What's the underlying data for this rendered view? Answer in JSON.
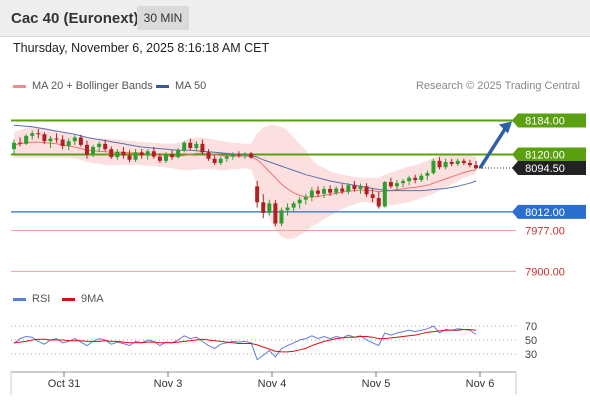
{
  "header": {
    "title": "Cac 40 (Euronext)",
    "timeframe": "30 MIN"
  },
  "datetime": "Thursday, November 6, 2025 8:16:18 AM CET",
  "research": "Research © 2025 Trading Central",
  "legend_main": [
    {
      "label": "MA 20 + Bollinger Bands",
      "color": "#f28c8c"
    },
    {
      "label": "MA 50",
      "color": "#3a5a9c"
    }
  ],
  "legend_rsi": [
    {
      "label": "RSI",
      "color": "#5b7fd6"
    },
    {
      "label": "9MA",
      "color": "#e01010"
    }
  ],
  "colors": {
    "up": "#2e9e2e",
    "down": "#b02020",
    "resistance": "#5aa010",
    "support": "#2a6fd0",
    "target": "#c83030",
    "arrow": "#2f5fa8"
  },
  "chart_data": {
    "type": "candlestick",
    "instrument": "Cac 40 (Euronext)",
    "interval": "30 MIN",
    "x_labels": [
      "Oct 31",
      "Nov 3",
      "Nov 4",
      "Nov 5",
      "Nov 6"
    ],
    "price_range": [
      7880,
      8230
    ],
    "last_price": 8094.5,
    "last_price_label": "8094.50",
    "levels": [
      {
        "value": 8184.0,
        "label": "8184.00",
        "kind": "resistance"
      },
      {
        "value": 8120.0,
        "label": "8120.00",
        "kind": "resistance"
      },
      {
        "value": 8012.0,
        "label": "8012.00",
        "kind": "support"
      },
      {
        "value": 7977.0,
        "label": "7977.00",
        "kind": "target"
      },
      {
        "value": 7900.0,
        "label": "7900.00",
        "kind": "target"
      }
    ],
    "forecast_arrow": {
      "from": 8094.5,
      "to": 8184.0
    },
    "ohlc": [
      [
        8130,
        8148,
        8120,
        8142
      ],
      [
        8142,
        8152,
        8135,
        8140
      ],
      [
        8140,
        8158,
        8138,
        8155
      ],
      [
        8155,
        8165,
        8148,
        8160
      ],
      [
        8160,
        8168,
        8150,
        8158
      ],
      [
        8158,
        8162,
        8140,
        8145
      ],
      [
        8145,
        8155,
        8132,
        8150
      ],
      [
        8150,
        8160,
        8142,
        8148
      ],
      [
        8148,
        8156,
        8130,
        8136
      ],
      [
        8136,
        8150,
        8128,
        8145
      ],
      [
        8145,
        8158,
        8138,
        8152
      ],
      [
        8152,
        8157,
        8135,
        8138
      ],
      [
        8138,
        8146,
        8112,
        8120
      ],
      [
        8120,
        8138,
        8115,
        8134
      ],
      [
        8134,
        8144,
        8124,
        8140
      ],
      [
        8140,
        8148,
        8126,
        8130
      ],
      [
        8130,
        8135,
        8112,
        8115
      ],
      [
        8115,
        8130,
        8110,
        8125
      ],
      [
        8125,
        8134,
        8112,
        8118
      ],
      [
        8118,
        8128,
        8105,
        8110
      ],
      [
        8110,
        8130,
        8106,
        8124
      ],
      [
        8124,
        8130,
        8112,
        8118
      ],
      [
        8118,
        8130,
        8110,
        8126
      ],
      [
        8126,
        8134,
        8112,
        8116
      ],
      [
        8116,
        8122,
        8104,
        8108
      ],
      [
        8108,
        8124,
        8104,
        8120
      ],
      [
        8120,
        8128,
        8110,
        8115
      ],
      [
        8115,
        8132,
        8112,
        8128
      ],
      [
        8128,
        8145,
        8124,
        8142
      ],
      [
        8142,
        8150,
        8128,
        8132
      ],
      [
        8132,
        8145,
        8126,
        8140
      ],
      [
        8140,
        8148,
        8120,
        8124
      ],
      [
        8124,
        8130,
        8108,
        8112
      ],
      [
        8112,
        8118,
        8100,
        8104
      ],
      [
        8104,
        8116,
        8100,
        8112
      ],
      [
        8112,
        8122,
        8106,
        8116
      ],
      [
        8116,
        8124,
        8110,
        8120
      ],
      [
        8120,
        8126,
        8114,
        8118
      ],
      [
        8118,
        8124,
        8112,
        8122
      ],
      [
        8122,
        8125,
        8112,
        8114
      ],
      [
        8060,
        8070,
        8020,
        8030
      ],
      [
        8030,
        8045,
        8000,
        8010
      ],
      [
        8010,
        8035,
        8005,
        8028
      ],
      [
        8028,
        8034,
        7985,
        7990
      ],
      [
        7990,
        8020,
        7985,
        8015
      ],
      [
        8015,
        8028,
        8005,
        8020
      ],
      [
        8020,
        8032,
        8012,
        8028
      ],
      [
        8028,
        8040,
        8018,
        8035
      ],
      [
        8035,
        8046,
        8026,
        8040
      ],
      [
        8040,
        8058,
        8032,
        8052
      ],
      [
        8052,
        8060,
        8040,
        8046
      ],
      [
        8046,
        8060,
        8038,
        8055
      ],
      [
        8055,
        8062,
        8042,
        8048
      ],
      [
        8048,
        8060,
        8044,
        8056
      ],
      [
        8056,
        8064,
        8046,
        8050
      ],
      [
        8050,
        8066,
        8045,
        8062
      ],
      [
        8062,
        8070,
        8050,
        8055
      ],
      [
        8055,
        8065,
        8046,
        8060
      ],
      [
        8060,
        8066,
        8040,
        8045
      ],
      [
        8045,
        8056,
        8030,
        8038
      ],
      [
        8038,
        8050,
        8018,
        8022
      ],
      [
        8022,
        8070,
        8020,
        8068
      ],
      [
        8068,
        8076,
        8056,
        8060
      ],
      [
        8060,
        8072,
        8052,
        8066
      ],
      [
        8066,
        8074,
        8058,
        8070
      ],
      [
        8070,
        8080,
        8062,
        8076
      ],
      [
        8076,
        8082,
        8066,
        8072
      ],
      [
        8072,
        8084,
        8068,
        8080
      ],
      [
        8080,
        8090,
        8072,
        8085
      ],
      [
        8085,
        8112,
        8082,
        8108
      ],
      [
        8108,
        8115,
        8092,
        8096
      ],
      [
        8096,
        8112,
        8092,
        8106
      ],
      [
        8106,
        8112,
        8098,
        8102
      ],
      [
        8102,
        8112,
        8098,
        8108
      ],
      [
        8108,
        8112,
        8100,
        8104
      ],
      [
        8104,
        8110,
        8096,
        8100
      ],
      [
        8100,
        8108,
        8092,
        8094
      ]
    ],
    "ma20": [
      8138,
      8140,
      8142,
      8143,
      8143,
      8142,
      8141,
      8140,
      8138,
      8136,
      8134,
      8131,
      8128,
      8127,
      8126,
      8125,
      8124,
      8124,
      8124,
      8123,
      8123,
      8122,
      8121,
      8120,
      8119,
      8118,
      8117,
      8117,
      8118,
      8120,
      8122,
      8122,
      8121,
      8120,
      8118,
      8117,
      8117,
      8117,
      8117,
      8116,
      8110,
      8100,
      8088,
      8076,
      8064,
      8055,
      8048,
      8043,
      8040,
      8040,
      8041,
      8043,
      8045,
      8047,
      8049,
      8051,
      8052,
      8053,
      8053,
      8052,
      8050,
      8051,
      8052,
      8054,
      8055,
      8057,
      8058,
      8060,
      8062,
      8066,
      8070,
      8074,
      8078,
      8082,
      8086,
      8089,
      8091
    ],
    "bb_upper": [
      8162,
      8166,
      8170,
      8172,
      8172,
      8170,
      8168,
      8165,
      8162,
      8158,
      8155,
      8152,
      8150,
      8150,
      8150,
      8150,
      8149,
      8148,
      8147,
      8146,
      8145,
      8144,
      8143,
      8142,
      8141,
      8140,
      8140,
      8142,
      8146,
      8150,
      8152,
      8152,
      8150,
      8148,
      8146,
      8144,
      8142,
      8141,
      8140,
      8140,
      8160,
      8170,
      8175,
      8175,
      8172,
      8165,
      8152,
      8140,
      8128,
      8110,
      8100,
      8095,
      8088,
      8085,
      8082,
      8080,
      8078,
      8076,
      8076,
      8076,
      8076,
      8082,
      8086,
      8090,
      8094,
      8098,
      8100,
      8104,
      8108,
      8114,
      8118,
      8120,
      8121,
      8121,
      8120,
      8118,
      8116
    ],
    "bb_lower": [
      8114,
      8114,
      8114,
      8114,
      8114,
      8114,
      8114,
      8115,
      8114,
      8114,
      8113,
      8110,
      8106,
      8104,
      8102,
      8100,
      8099,
      8100,
      8101,
      8100,
      8101,
      8100,
      8099,
      8098,
      8097,
      8096,
      8094,
      8092,
      8090,
      8090,
      8092,
      8092,
      8092,
      8092,
      8090,
      8090,
      8092,
      8093,
      8094,
      8092,
      8060,
      8030,
      8000,
      7978,
      7965,
      7960,
      7962,
      7968,
      7975,
      7985,
      7990,
      7998,
      8005,
      8012,
      8018,
      8022,
      8026,
      8030,
      8030,
      8028,
      8026,
      8024,
      8024,
      8026,
      8028,
      8030,
      8034,
      8038,
      8042,
      8046,
      8052,
      8058,
      8064,
      8070,
      8076,
      8080,
      8084
    ],
    "ma50": [
      8175,
      8174,
      8173,
      8172,
      8170,
      8168,
      8166,
      8164,
      8162,
      8160,
      8158,
      8155,
      8152,
      8150,
      8148,
      8146,
      8144,
      8142,
      8140,
      8138,
      8136,
      8134,
      8133,
      8132,
      8131,
      8130,
      8129,
      8128,
      8128,
      8128,
      8127,
      8126,
      8125,
      8124,
      8123,
      8122,
      8121,
      8120,
      8119,
      8118,
      8115,
      8110,
      8106,
      8102,
      8098,
      8094,
      8090,
      8086,
      8082,
      8079,
      8076,
      8073,
      8070,
      8068,
      8066,
      8064,
      8062,
      8060,
      8058,
      8056,
      8054,
      8053,
      8052,
      8052,
      8052,
      8052,
      8052,
      8052,
      8053,
      8054,
      8055,
      8056,
      8058,
      8060,
      8063,
      8066,
      8070
    ],
    "rsi": {
      "levels": [
        70,
        50,
        30
      ],
      "range": [
        10,
        90
      ],
      "rsi": [
        45,
        52,
        55,
        54,
        48,
        44,
        50,
        52,
        46,
        48,
        52,
        47,
        42,
        48,
        52,
        50,
        44,
        47,
        45,
        42,
        48,
        46,
        50,
        48,
        42,
        47,
        46,
        50,
        56,
        52,
        54,
        48,
        42,
        38,
        44,
        46,
        48,
        47,
        48,
        46,
        22,
        28,
        35,
        26,
        38,
        42,
        46,
        50,
        52,
        56,
        52,
        55,
        52,
        55,
        53,
        57,
        54,
        56,
        50,
        46,
        42,
        60,
        57,
        60,
        62,
        64,
        62,
        64,
        66,
        70,
        60,
        65,
        64,
        66,
        65,
        64,
        58
      ],
      "ma9": [
        46,
        47,
        48,
        50,
        51,
        51,
        50,
        50,
        50,
        49,
        49,
        49,
        48,
        48,
        48,
        49,
        48,
        48,
        47,
        46,
        46,
        46,
        47,
        47,
        46,
        46,
        46,
        47,
        48,
        49,
        50,
        51,
        50,
        49,
        48,
        47,
        46,
        45,
        45,
        45,
        43,
        40,
        37,
        34,
        33,
        33,
        34,
        36,
        38,
        42,
        45,
        48,
        50,
        52,
        53,
        54,
        54,
        55,
        55,
        54,
        52,
        52,
        53,
        54,
        55,
        56,
        57,
        59,
        61,
        62,
        63,
        64,
        64,
        64,
        65,
        65,
        64
      ]
    }
  }
}
